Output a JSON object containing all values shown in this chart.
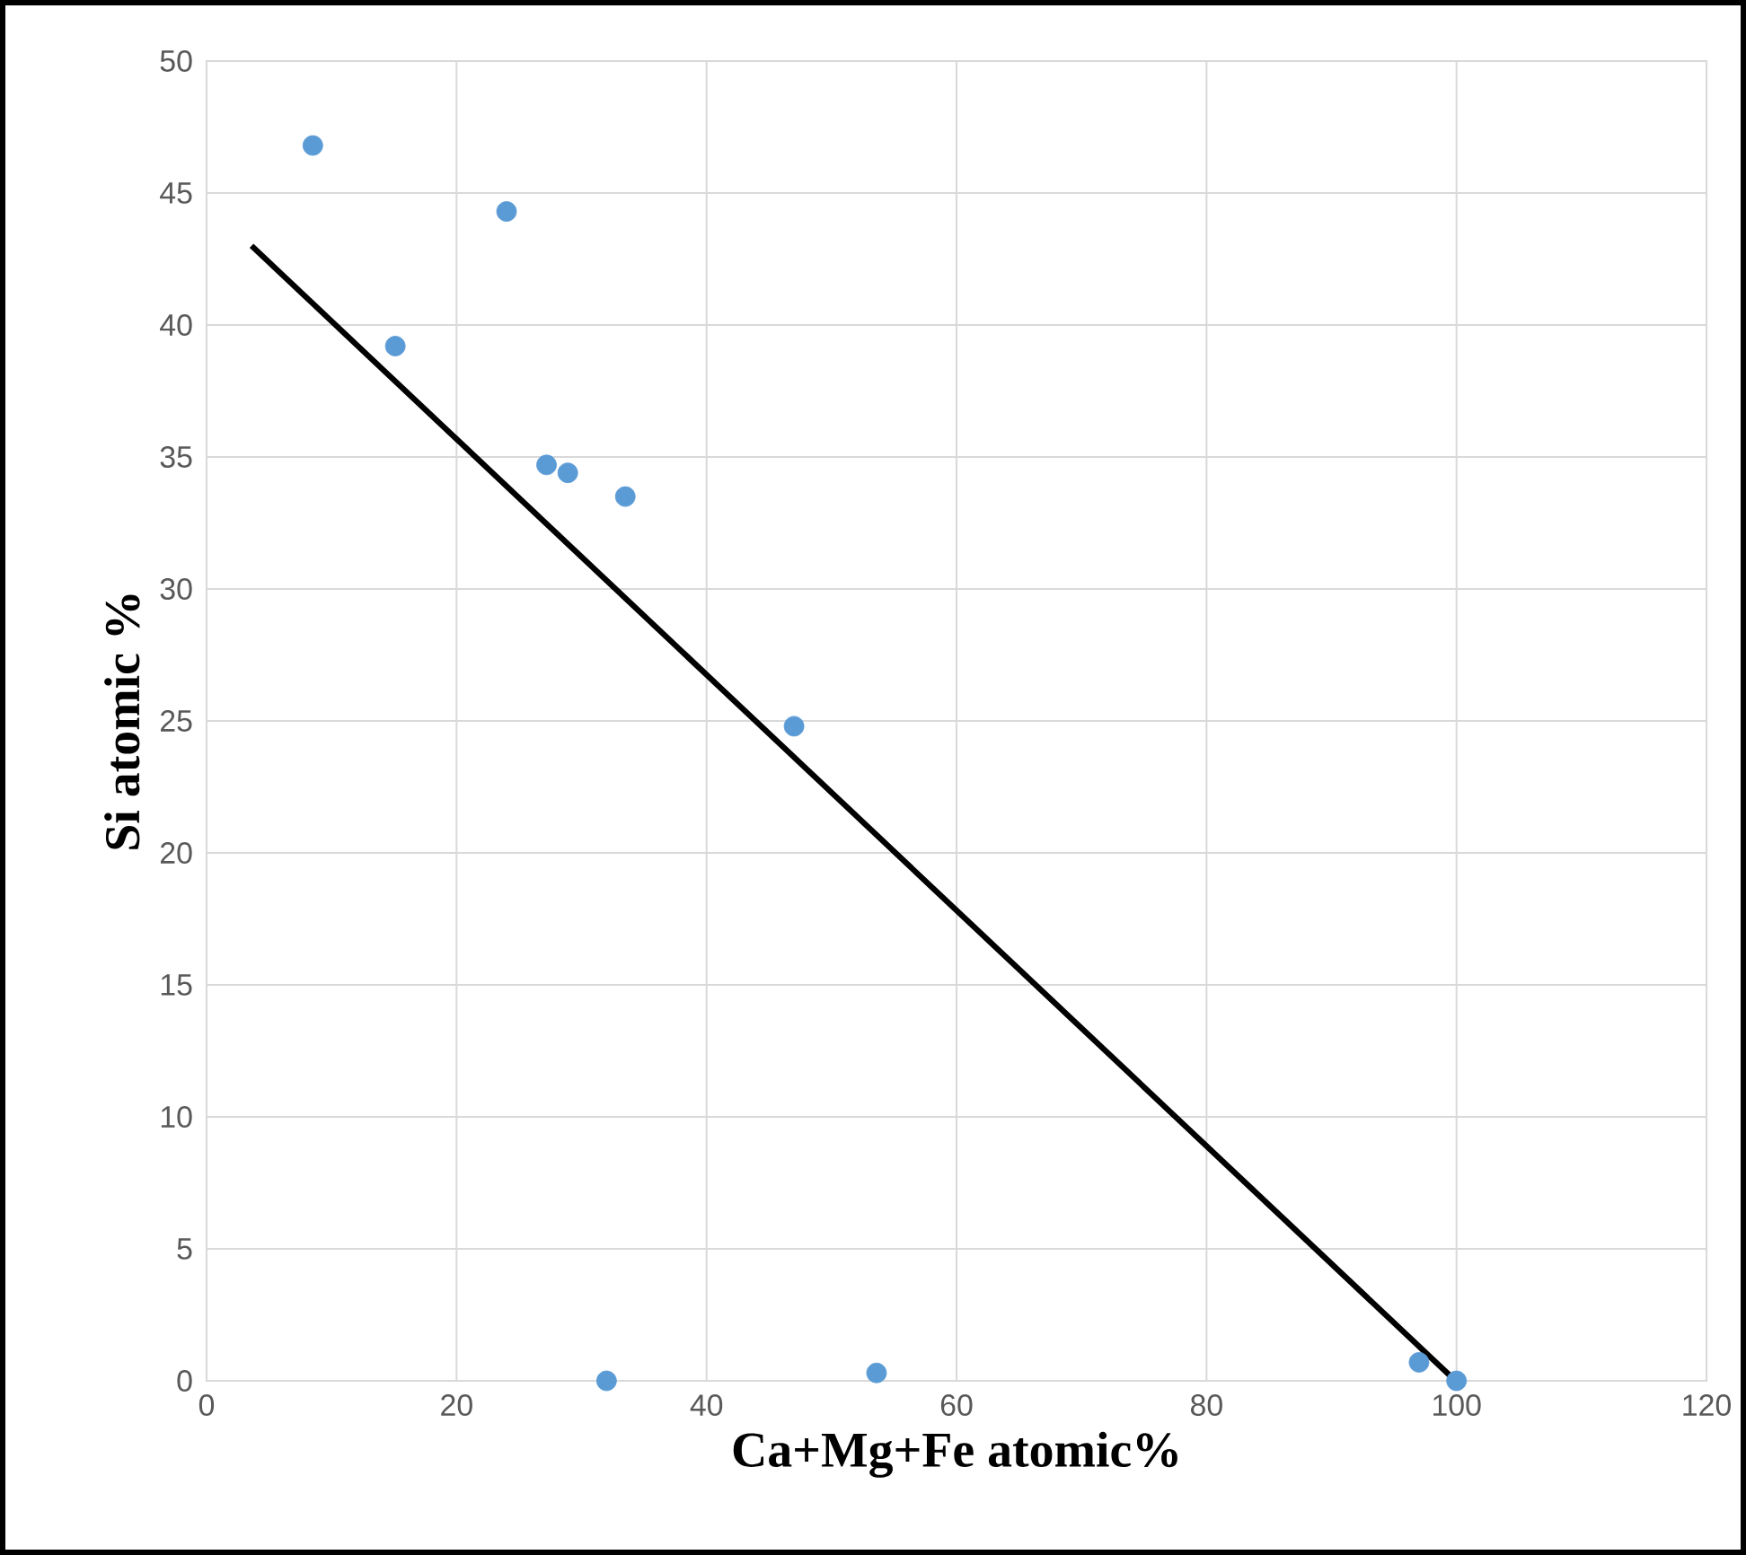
{
  "chart_data": {
    "type": "scatter",
    "xlabel": "Ca+Mg+Fe atomic%",
    "ylabel": "Si atomic %",
    "series": [
      {
        "color": "#5b9bd5",
        "marker": "circle",
        "x": [
          8.5,
          24.0,
          15.1,
          27.2,
          28.9,
          33.5,
          47.0,
          32.0,
          53.6,
          97.0,
          100.0
        ],
        "values": [
          46.8,
          44.3,
          39.2,
          34.7,
          34.4,
          33.5,
          24.8,
          0,
          0.3,
          0.7,
          0
        ]
      },
      {
        "type": "line",
        "color": "#000000",
        "marker": "none",
        "x": [
          3.6,
          99.7
        ],
        "values": [
          43.0,
          0.1
        ]
      }
    ],
    "xlim": [
      0,
      120
    ],
    "xticks": [
      0,
      20,
      40,
      60,
      80,
      100,
      120
    ],
    "ylim": [
      0,
      50
    ],
    "yticks": [
      0,
      5,
      10,
      15,
      20,
      25,
      30,
      35,
      40,
      45,
      50
    ],
    "grid": true
  }
}
